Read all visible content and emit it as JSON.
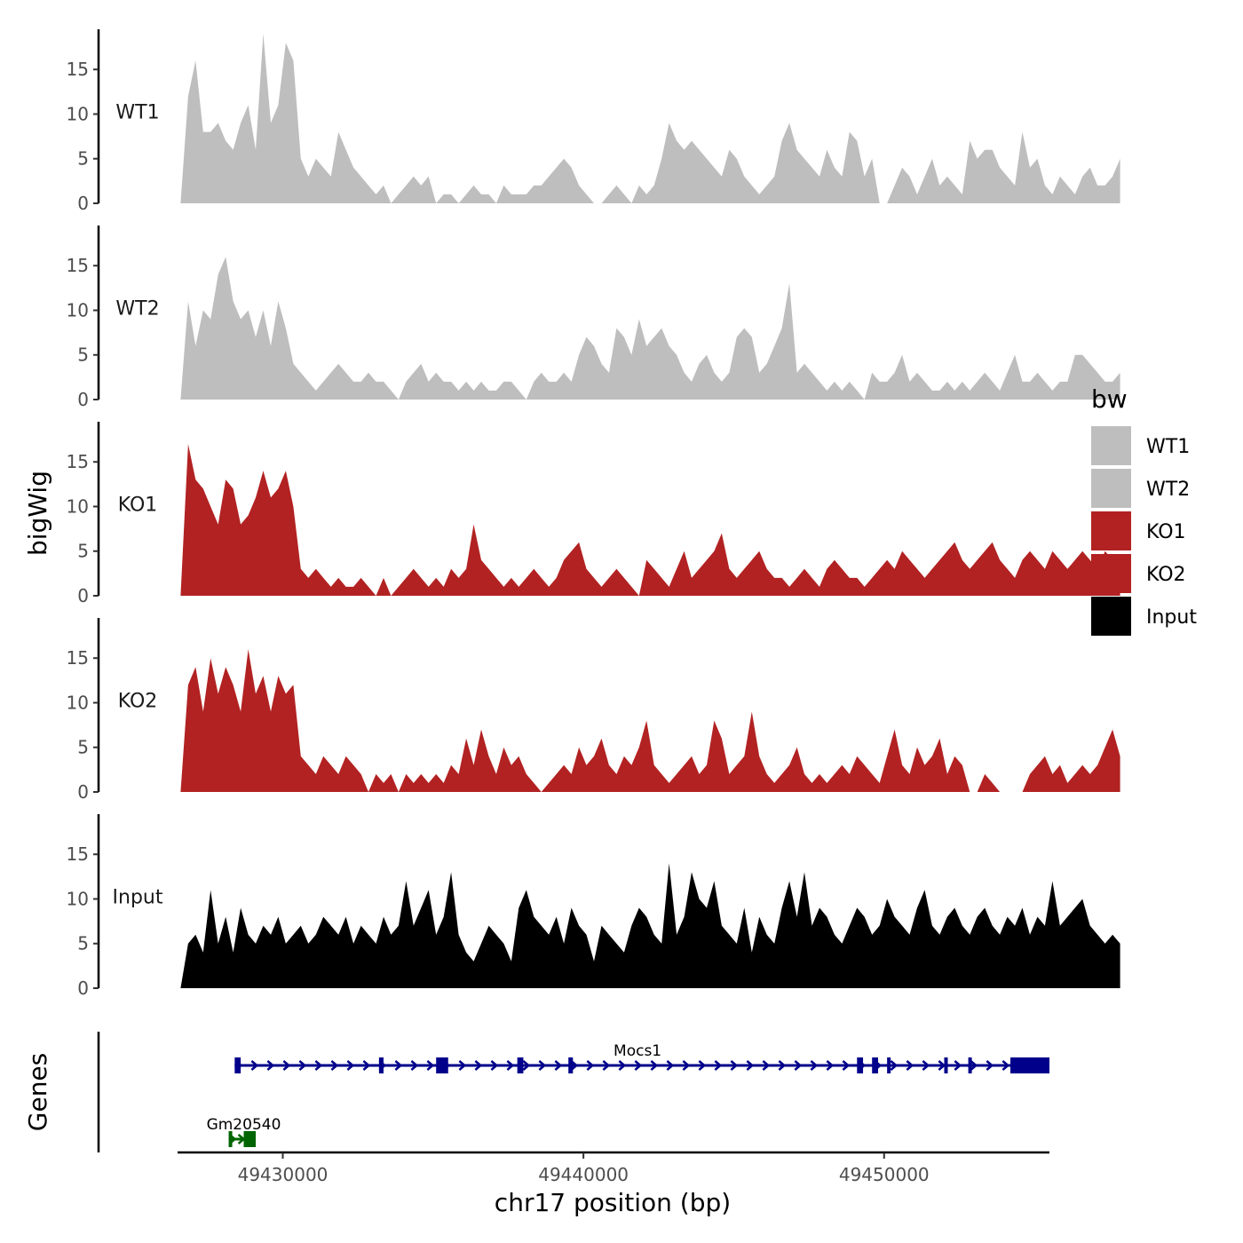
{
  "chart_data": {
    "type": "area",
    "ylabel": "bigWig",
    "xlabel": "chr17 position (bp)",
    "xlim": [
      49426500,
      49455500
    ],
    "x_ticks": [
      49430000,
      49440000,
      49450000
    ],
    "x_tick_labels": [
      "49430000",
      "49440000",
      "49450000"
    ],
    "ylim": [
      0,
      19.5
    ],
    "y_ticks": [
      0,
      5,
      10,
      15
    ],
    "y_tick_labels": [
      "0",
      "5",
      "10",
      "15"
    ],
    "x_start": 49426600,
    "x_step": 250,
    "legend": {
      "title": "bw",
      "placement": "right",
      "entries": [
        {
          "label": "WT1",
          "color": "#bebebe"
        },
        {
          "label": "WT2",
          "color": "#bebebe"
        },
        {
          "label": "KO1",
          "color": "#b22222"
        },
        {
          "label": "KO2",
          "color": "#b22222"
        },
        {
          "label": "Input",
          "color": "#000000"
        }
      ]
    },
    "series": [
      {
        "name": "WT1",
        "label": "WT1",
        "color": "#bebebe",
        "values": [
          0,
          12,
          16,
          8,
          8,
          9,
          7,
          6,
          9,
          11,
          6,
          19,
          9,
          11,
          18,
          16,
          5,
          3,
          5,
          4,
          3,
          8,
          6,
          4,
          3,
          2,
          1,
          2,
          0,
          1,
          2,
          3,
          2,
          3,
          0,
          1,
          1,
          0,
          1,
          2,
          1,
          1,
          0,
          2,
          1,
          1,
          1,
          2,
          2,
          3,
          4,
          5,
          4,
          2,
          1,
          0,
          0,
          1,
          2,
          1,
          0,
          2,
          1,
          2,
          5,
          9,
          7,
          6,
          7,
          6,
          5,
          4,
          3,
          6,
          5,
          3,
          2,
          1,
          2,
          3,
          7,
          9,
          6,
          5,
          4,
          3,
          6,
          4,
          3,
          8,
          7,
          3,
          5,
          0,
          0,
          2,
          4,
          3,
          1,
          3,
          5,
          2,
          3,
          2,
          1,
          7,
          5,
          6,
          6,
          4,
          3,
          2,
          8,
          4,
          5,
          2,
          1,
          3,
          2,
          1,
          3,
          4,
          2,
          2,
          3,
          5
        ]
      },
      {
        "name": "WT2",
        "label": "WT2",
        "color": "#bebebe",
        "values": [
          0,
          11,
          6,
          10,
          9,
          14,
          16,
          11,
          9,
          10,
          7,
          10,
          6,
          11,
          8,
          4,
          3,
          2,
          1,
          2,
          3,
          4,
          3,
          2,
          2,
          3,
          2,
          2,
          1,
          0,
          2,
          3,
          4,
          2,
          3,
          2,
          2,
          1,
          2,
          1,
          2,
          1,
          1,
          2,
          2,
          1,
          0,
          2,
          3,
          2,
          2,
          3,
          2,
          5,
          7,
          6,
          4,
          3,
          8,
          7,
          5,
          9,
          6,
          7,
          8,
          6,
          5,
          3,
          2,
          4,
          5,
          3,
          2,
          3,
          7,
          8,
          7,
          3,
          4,
          6,
          8,
          13,
          3,
          4,
          3,
          2,
          1,
          2,
          1,
          2,
          1,
          0,
          3,
          2,
          2,
          3,
          5,
          2,
          3,
          2,
          1,
          1,
          2,
          1,
          2,
          1,
          2,
          3,
          2,
          1,
          3,
          5,
          2,
          2,
          3,
          2,
          1,
          2,
          2,
          5,
          5,
          4,
          3,
          2,
          2,
          3
        ]
      },
      {
        "name": "KO1",
        "label": "KO1",
        "color": "#b22222",
        "values": [
          0,
          17,
          13,
          12,
          10,
          8,
          13,
          12,
          8,
          9,
          11,
          14,
          11,
          12,
          14,
          10,
          3,
          2,
          3,
          2,
          1,
          2,
          1,
          1,
          2,
          1,
          0,
          2,
          0,
          1,
          2,
          3,
          2,
          1,
          2,
          1,
          3,
          2,
          3,
          8,
          4,
          3,
          2,
          1,
          2,
          1,
          2,
          3,
          2,
          1,
          2,
          4,
          5,
          6,
          3,
          2,
          1,
          2,
          3,
          2,
          1,
          0,
          4,
          3,
          2,
          1,
          3,
          5,
          2,
          3,
          4,
          5,
          7,
          3,
          2,
          3,
          4,
          5,
          3,
          2,
          2,
          1,
          2,
          3,
          2,
          1,
          3,
          4,
          3,
          2,
          2,
          1,
          2,
          3,
          4,
          3,
          5,
          4,
          3,
          2,
          3,
          4,
          5,
          6,
          4,
          3,
          4,
          5,
          6,
          4,
          3,
          2,
          4,
          5,
          4,
          3,
          5,
          4,
          3,
          4,
          5,
          4,
          3,
          5,
          4,
          3
        ]
      },
      {
        "name": "KO2",
        "label": "KO2",
        "color": "#b22222",
        "values": [
          0,
          12,
          14,
          9,
          15,
          11,
          14,
          12,
          9,
          16,
          11,
          13,
          9,
          13,
          11,
          12,
          4,
          3,
          2,
          4,
          3,
          2,
          4,
          3,
          2,
          0,
          2,
          1,
          2,
          0,
          2,
          1,
          2,
          1,
          2,
          1,
          3,
          2,
          6,
          3,
          7,
          4,
          2,
          5,
          3,
          4,
          2,
          1,
          0,
          1,
          2,
          3,
          2,
          5,
          3,
          4,
          6,
          3,
          2,
          4,
          3,
          5,
          8,
          3,
          2,
          1,
          2,
          3,
          4,
          2,
          3,
          8,
          6,
          2,
          3,
          4,
          9,
          4,
          2,
          1,
          2,
          3,
          5,
          2,
          1,
          2,
          1,
          2,
          3,
          2,
          4,
          3,
          2,
          1,
          4,
          7,
          3,
          2,
          5,
          3,
          4,
          6,
          2,
          4,
          3,
          0,
          0,
          2,
          1,
          0,
          0,
          0,
          0,
          2,
          3,
          4,
          2,
          3,
          1,
          2,
          3,
          2,
          3,
          5,
          7,
          4
        ]
      },
      {
        "name": "Input",
        "label": "Input",
        "color": "#000000",
        "values": [
          0,
          5,
          6,
          4,
          11,
          5,
          8,
          4,
          9,
          6,
          5,
          7,
          6,
          8,
          5,
          6,
          7,
          5,
          6,
          8,
          7,
          6,
          8,
          5,
          7,
          6,
          5,
          8,
          6,
          7,
          12,
          7,
          9,
          11,
          6,
          8,
          13,
          6,
          4,
          3,
          5,
          7,
          6,
          5,
          3,
          9,
          11,
          8,
          7,
          6,
          8,
          5,
          9,
          7,
          6,
          3,
          7,
          6,
          5,
          4,
          7,
          9,
          8,
          6,
          5,
          14,
          6,
          8,
          13,
          10,
          9,
          12,
          7,
          6,
          5,
          9,
          4,
          8,
          6,
          5,
          9,
          12,
          8,
          13,
          7,
          9,
          8,
          6,
          5,
          7,
          9,
          8,
          6,
          7,
          10,
          8,
          7,
          6,
          9,
          11,
          7,
          6,
          8,
          9,
          7,
          6,
          8,
          9,
          7,
          6,
          8,
          7,
          9,
          6,
          8,
          7,
          12,
          7,
          8,
          9,
          10,
          7,
          6,
          5,
          6,
          5
        ]
      }
    ],
    "genes": [
      {
        "name": "Gm20540",
        "start": 49428200,
        "end": 49429100,
        "strand": "+",
        "color": "#006400",
        "exons": [
          [
            49428200,
            49428300
          ],
          [
            49428700,
            49429100
          ]
        ]
      },
      {
        "name": "Mocs1",
        "start": 49428400,
        "end": 49455500,
        "strand": "+",
        "color": "#00008b",
        "exons": [
          [
            49428400,
            49428600
          ],
          [
            49433200,
            49433350
          ],
          [
            49435100,
            49435500
          ],
          [
            49437800,
            49438000
          ],
          [
            49439500,
            49439650
          ],
          [
            49449100,
            49449300
          ],
          [
            49449600,
            49449800
          ],
          [
            49450100,
            49450200
          ],
          [
            49452000,
            49452100
          ],
          [
            49452800,
            49452900
          ],
          [
            49454200,
            49455500
          ]
        ]
      }
    ]
  }
}
